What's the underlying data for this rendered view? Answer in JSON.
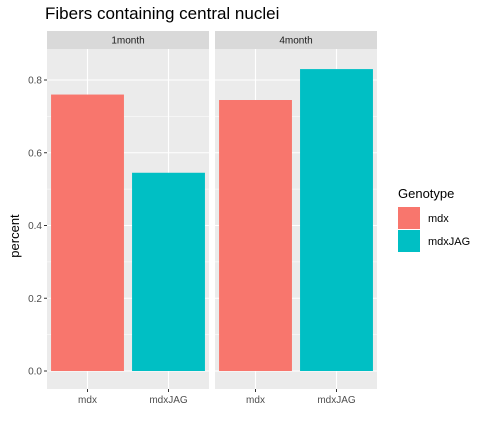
{
  "chart_data": {
    "type": "bar",
    "title": "Fibers containing central nuclei",
    "xlabel": "",
    "ylabel": "percent",
    "ylim": [
      0,
      0.85
    ],
    "yticks": [
      "0.0",
      "0.2",
      "0.4",
      "0.6",
      "0.8"
    ],
    "grid": true,
    "legend": {
      "title": "Genotype",
      "placement": "right",
      "entries": [
        "mdx",
        "mdxJAG"
      ]
    },
    "categories": [
      "mdx",
      "mdxJAG"
    ],
    "colors": {
      "mdx": "#F8766D",
      "mdxJAG": "#00BFC4"
    },
    "facets": [
      {
        "label": "1month",
        "values": [
          0.76,
          0.545
        ]
      },
      {
        "label": "4month",
        "values": [
          0.745,
          0.83
        ]
      }
    ]
  }
}
